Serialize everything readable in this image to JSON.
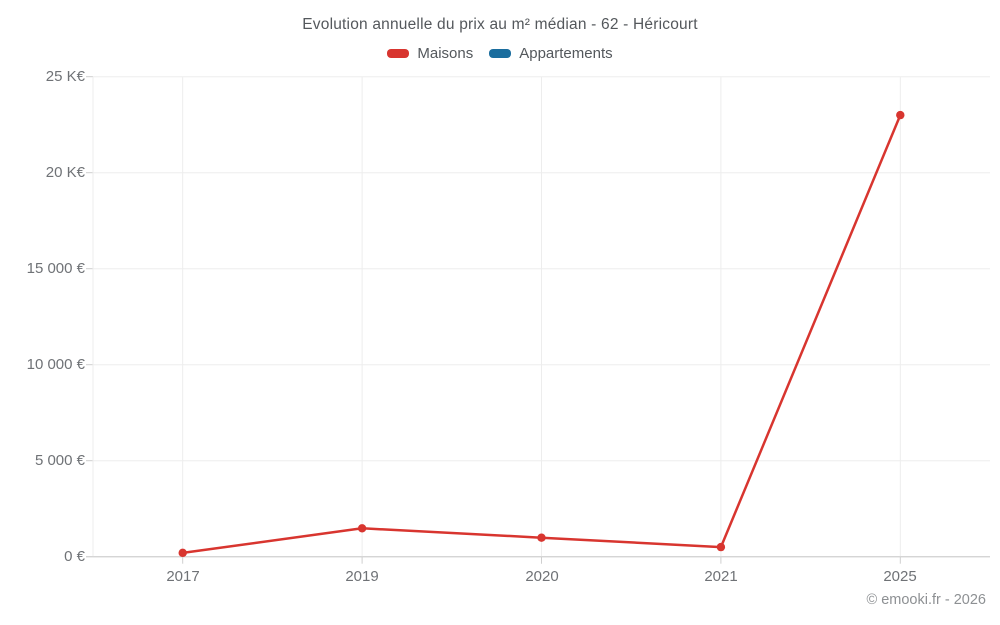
{
  "title": "Evolution annuelle du prix au m² médian - 62 - Héricourt",
  "legend": {
    "items": [
      {
        "label": "Maisons",
        "color": "#d8352f"
      },
      {
        "label": "Appartements",
        "color": "#1a6d9e"
      }
    ]
  },
  "footer": {
    "credit": "© emooki.fr - 2026"
  },
  "colors": {
    "background": "#ffffff",
    "grid": "#ededed",
    "axis": "#cfcfcf",
    "title_text": "#54585c",
    "tick_text": "#6f7276",
    "footer_text": "#8d9093",
    "maisons": "#d8352f",
    "appartements": "#1a6d9e"
  },
  "chart_data": {
    "type": "line",
    "title": "Evolution annuelle du prix au m² médian - 62 - Héricourt",
    "categories": [
      "2017",
      "2019",
      "2020",
      "2021",
      "2025"
    ],
    "series": [
      {
        "name": "Maisons",
        "color": "#d8352f",
        "values": [
          200,
          1480,
          990,
          500,
          23000
        ]
      },
      {
        "name": "Appartements",
        "color": "#1a6d9e",
        "values": []
      }
    ],
    "xlabel": "",
    "ylabel": "",
    "ylim": [
      0,
      25000
    ],
    "ytick_values": [
      0,
      5000,
      10000,
      15000,
      20000,
      25000
    ],
    "ytick_labels": [
      "0 €",
      "5 000 €",
      "10 000 €",
      "15 000 €",
      "20 K€",
      "25 K€"
    ],
    "grid": true,
    "legend_position": "top",
    "marker": "circle"
  }
}
